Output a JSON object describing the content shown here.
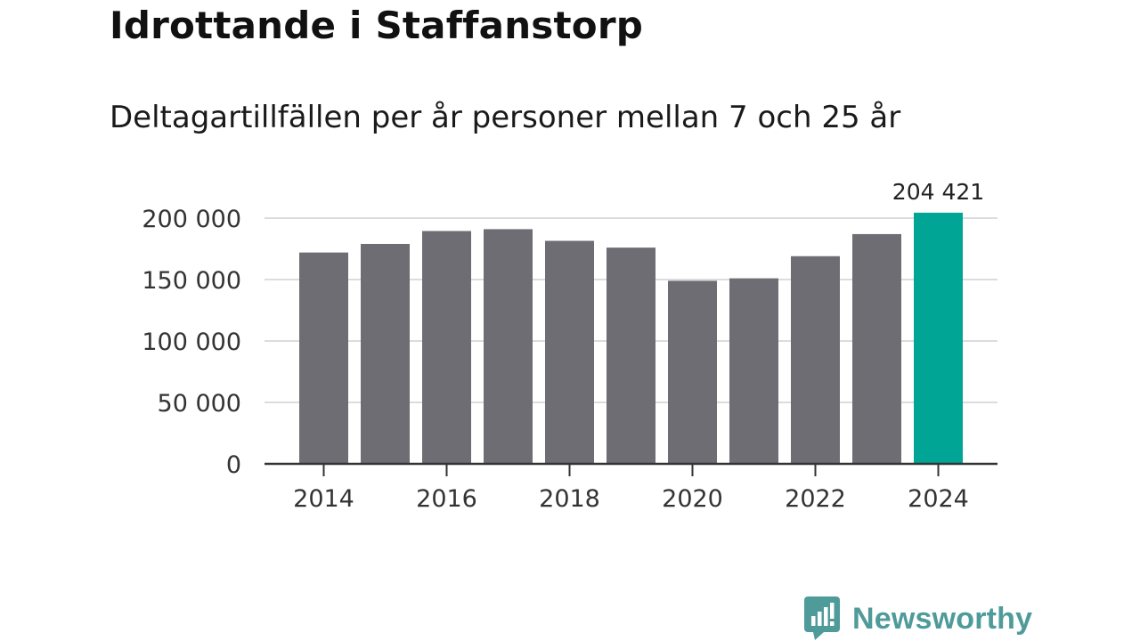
{
  "header": {
    "title": "Idrottande i Staffanstorp",
    "subtitle": "Deltagartillfällen per år personer mellan 7 och 25 år"
  },
  "brand": {
    "name": "Newsworthy",
    "icon": "newsworthy-logo-icon",
    "color": "#4f9b9a"
  },
  "chart_data": {
    "type": "bar",
    "categories": [
      "2014",
      "2015",
      "2016",
      "2017",
      "2018",
      "2019",
      "2020",
      "2021",
      "2022",
      "2023",
      "2024"
    ],
    "values": [
      172000,
      179000,
      189500,
      191000,
      181500,
      176000,
      149000,
      151000,
      169000,
      187000,
      204421
    ],
    "highlight_index": 10,
    "highlight_label": "204 421",
    "bar_color": "#6e6d73",
    "highlight_color": "#00a596",
    "ylim": [
      0,
      200000
    ],
    "yticks": [
      0,
      50000,
      100000,
      150000,
      200000
    ],
    "ytick_labels": [
      "0",
      "50 000",
      "100 000",
      "150 000",
      "200 000"
    ],
    "xtick_labels": [
      "2014",
      "2016",
      "2018",
      "2020",
      "2022",
      "2024"
    ],
    "grid": true,
    "legend": "none"
  }
}
